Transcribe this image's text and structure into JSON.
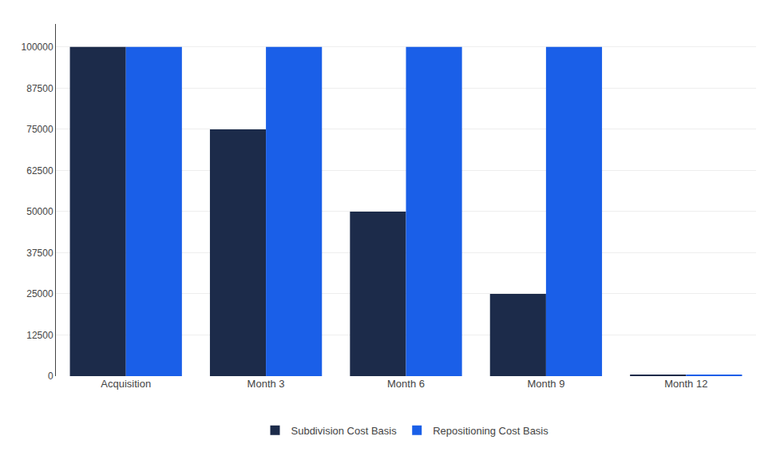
{
  "chart_data": {
    "type": "bar",
    "categories": [
      "Acquisition",
      "Month 3",
      "Month 6",
      "Month 9",
      "Month 12"
    ],
    "series": [
      {
        "name": "Subdivision Cost Basis",
        "color": "#1c2b4a",
        "values": [
          100000,
          75000,
          50000,
          25000,
          500
        ]
      },
      {
        "name": "Repositioning Cost Basis",
        "color": "#1a5fe8",
        "values": [
          100000,
          100000,
          100000,
          100000,
          500
        ]
      }
    ],
    "ylim": [
      0,
      107000
    ],
    "yticks": [
      0,
      12500,
      25000,
      37500,
      50000,
      62500,
      75000,
      87500,
      100000
    ],
    "grid": true,
    "legend": "bottom"
  }
}
